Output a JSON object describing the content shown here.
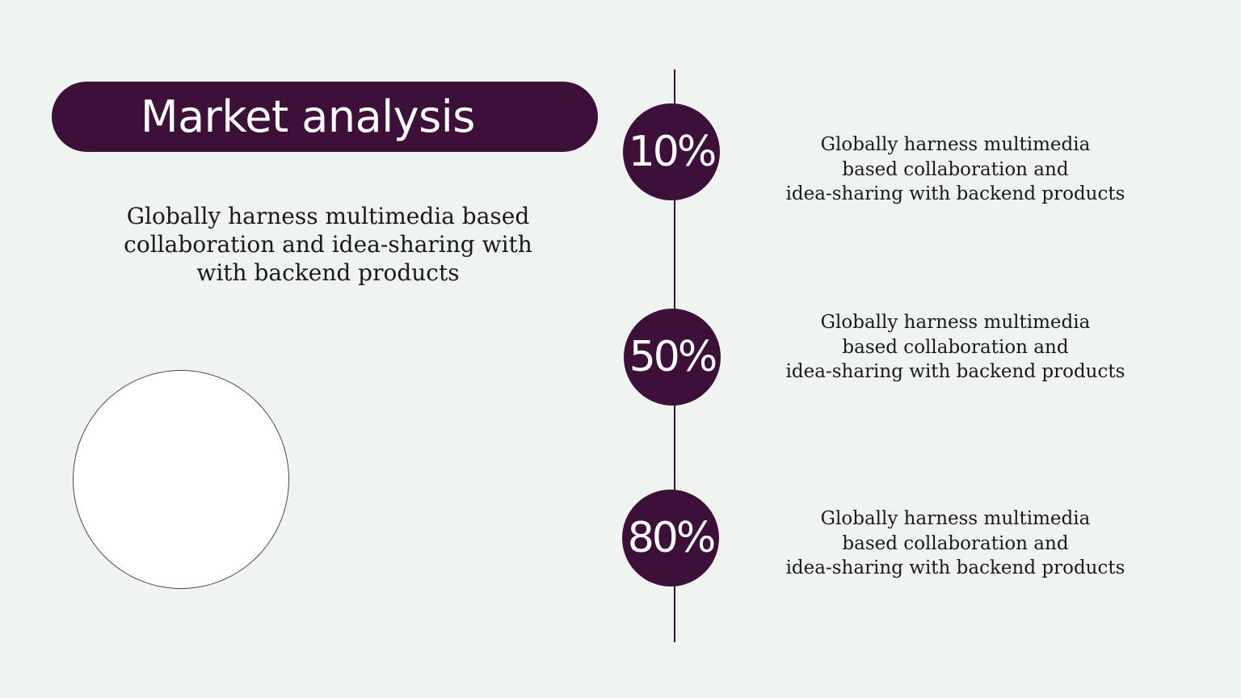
{
  "title": "Market analysis",
  "intro": {
    "lines": [
      "Globally harness multimedia based",
      "collaboration and idea-sharing with",
      "with backend products"
    ]
  },
  "milestones": [
    {
      "value": "10%",
      "lines": [
        "Globally harness multimedia",
        "based collaboration and",
        "idea-sharing with backend products"
      ]
    },
    {
      "value": "50%",
      "lines": [
        "Globally harness multimedia",
        "based collaboration and",
        "idea-sharing with backend products"
      ]
    },
    {
      "value": "80%",
      "lines": [
        "Globally harness multimedia",
        "based collaboration and",
        "idea-sharing with backend products"
      ]
    }
  ],
  "colors": {
    "background": "#eff4f1",
    "accent": "#3d1039",
    "text": "#1a1a1a",
    "on_accent": "#ffffff"
  }
}
